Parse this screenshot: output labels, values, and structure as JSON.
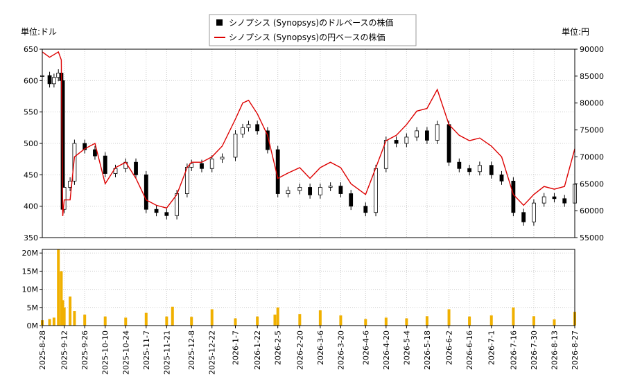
{
  "chart_data": {
    "type": "line",
    "legend": {
      "placement": "top-center",
      "items": [
        {
          "label": "シノプシス (Synopsys)のドルベースの株価",
          "style": "candlestick",
          "color": "#000000"
        },
        {
          "label": "シノプシス (Synopsys)の円ベースの株価",
          "style": "line",
          "color": "#dd0000"
        }
      ]
    },
    "left_unit": "単位:ドル",
    "right_unit": "単位:円",
    "ylim_left": [
      350,
      650
    ],
    "ylim_right": [
      55000,
      90000
    ],
    "yticks_left": [
      350,
      400,
      450,
      500,
      550,
      600,
      650
    ],
    "yticks_right": [
      55000,
      60000,
      65000,
      70000,
      75000,
      80000,
      85000,
      90000
    ],
    "volume": {
      "ylim": [
        0,
        21000000
      ],
      "yticks": [
        0,
        5000000,
        10000000,
        15000000,
        20000000
      ],
      "ytick_labels": [
        "0M",
        "5M",
        "10M",
        "15M",
        "20M"
      ],
      "bar_color": "#f0b000",
      "dates": [
        "2025-08-28",
        "2025-09-02",
        "2025-09-05",
        "2025-09-08",
        "2025-09-10",
        "2025-09-11",
        "2025-09-12",
        "2025-09-16",
        "2025-09-19",
        "2025-09-26",
        "2025-10-10",
        "2025-10-24",
        "2025-11-07",
        "2025-11-21",
        "2025-11-25",
        "2025-12-08",
        "2025-12-22",
        "2026-01-07",
        "2026-01-22",
        "2026-02-03",
        "2026-02-05",
        "2026-02-20",
        "2026-03-06",
        "2026-03-20",
        "2026-04-06",
        "2026-04-20",
        "2026-05-04",
        "2026-05-18",
        "2026-06-02",
        "2026-06-16",
        "2026-07-01",
        "2026-07-16",
        "2026-07-30",
        "2026-08-13",
        "2026-08-27"
      ],
      "values": [
        1500000,
        1800000,
        2200000,
        21000000,
        15000000,
        7000000,
        5000000,
        8000000,
        4000000,
        3000000,
        2500000,
        2200000,
        3500000,
        2500000,
        5200000,
        2400000,
        4500000,
        2000000,
        2500000,
        3000000,
        5000000,
        3200000,
        4200000,
        2800000,
        1800000,
        2200000,
        2000000,
        2600000,
        4500000,
        2500000,
        2800000,
        5000000,
        2600000,
        1700000,
        3800000
      ]
    },
    "x_ticks": [
      "2025-8-28",
      "2025-9-12",
      "2025-9-26",
      "2025-10-10",
      "2025-10-24",
      "2025-11-7",
      "2025-11-21",
      "2025-12-8",
      "2025-12-22",
      "2026-1-7",
      "2026-1-22",
      "2026-2-5",
      "2026-2-20",
      "2026-3-6",
      "2026-3-20",
      "2026-4-6",
      "2026-4-20",
      "2026-5-4",
      "2026-5-18",
      "2026-6-2",
      "2026-6-16",
      "2026-7-1",
      "2026-7-16",
      "2026-7-30",
      "2026-8-13",
      "2026-8-27"
    ],
    "dates": [
      "2025-08-28",
      "2025-09-02",
      "2025-09-05",
      "2025-09-08",
      "2025-09-10",
      "2025-09-11",
      "2025-09-12",
      "2025-09-16",
      "2025-09-19",
      "2025-09-26",
      "2025-10-03",
      "2025-10-10",
      "2025-10-17",
      "2025-10-24",
      "2025-10-31",
      "2025-11-07",
      "2025-11-14",
      "2025-11-21",
      "2025-11-28",
      "2025-12-05",
      "2025-12-08",
      "2025-12-15",
      "2025-12-22",
      "2025-12-29",
      "2026-01-07",
      "2026-01-12",
      "2026-01-16",
      "2026-01-22",
      "2026-01-29",
      "2026-02-05",
      "2026-02-12",
      "2026-02-20",
      "2026-02-27",
      "2026-03-06",
      "2026-03-13",
      "2026-03-20",
      "2026-03-27",
      "2026-04-06",
      "2026-04-13",
      "2026-04-20",
      "2026-04-27",
      "2026-05-04",
      "2026-05-11",
      "2026-05-18",
      "2026-05-25",
      "2026-06-02",
      "2026-06-09",
      "2026-06-16",
      "2026-06-23",
      "2026-07-01",
      "2026-07-08",
      "2026-07-16",
      "2026-07-23",
      "2026-07-30",
      "2026-08-06",
      "2026-08-13",
      "2026-08-20",
      "2026-08-27"
    ],
    "series": [
      {
        "name": "シノプシス (Synopsys)のドルベースの株価",
        "axis": "left",
        "values": [
          608,
          595,
          605,
          612,
          600,
          395,
          430,
          440,
          500,
          490,
          480,
          452,
          460,
          470,
          450,
          395,
          390,
          385,
          420,
          462,
          468,
          460,
          475,
          478,
          515,
          525,
          530,
          520,
          490,
          420,
          425,
          430,
          418,
          430,
          432,
          420,
          400,
          390,
          460,
          505,
          500,
          510,
          520,
          505,
          530,
          470,
          460,
          455,
          465,
          450,
          440,
          390,
          375,
          405,
          415,
          412,
          405,
          435
        ]
      },
      {
        "name": "シノプシス (Synopsys)の円ベースの株価",
        "axis": "right",
        "values": [
          89500,
          88500,
          89000,
          89500,
          88000,
          59000,
          62000,
          62000,
          70000,
          71500,
          72500,
          65000,
          68000,
          69000,
          66000,
          62000,
          61000,
          60500,
          63000,
          68000,
          69000,
          69000,
          70000,
          72000,
          77000,
          80000,
          80500,
          78000,
          74000,
          66000,
          67000,
          68000,
          66000,
          68000,
          69000,
          68000,
          65000,
          63000,
          68000,
          73000,
          74000,
          76000,
          78500,
          79000,
          82500,
          76000,
          74000,
          73000,
          73500,
          72000,
          70000,
          63000,
          61000,
          63000,
          64500,
          64000,
          64500,
          71500
        ]
      }
    ]
  }
}
